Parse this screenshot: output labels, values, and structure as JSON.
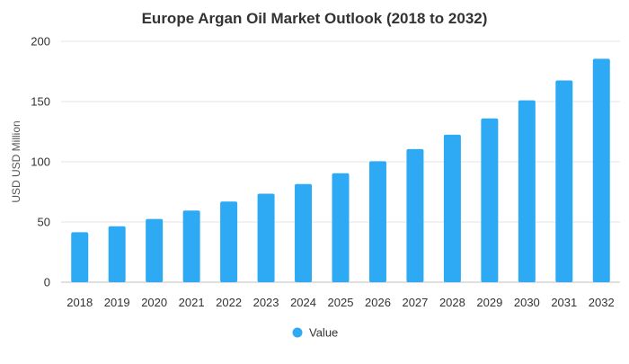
{
  "chart_data": {
    "type": "bar",
    "title": "Europe Argan Oil Market Outlook (2018 to 2032)",
    "xlabel": "",
    "ylabel": "USD USD Million",
    "categories": [
      "2018",
      "2019",
      "2020",
      "2021",
      "2022",
      "2023",
      "2024",
      "2025",
      "2026",
      "2027",
      "2028",
      "2029",
      "2030",
      "2031",
      "2032"
    ],
    "series": [
      {
        "name": "Value",
        "color": "#2eaaf5",
        "values": [
          41.5,
          46.5,
          52.5,
          59.5,
          67,
          73.5,
          81.5,
          90.5,
          100.5,
          110.5,
          122.5,
          136,
          151,
          167.5,
          185.5
        ]
      }
    ],
    "ylim": [
      0,
      200
    ],
    "yticks": [
      0,
      50,
      100,
      150,
      200
    ],
    "grid": true,
    "legend_position": "bottom-center"
  }
}
